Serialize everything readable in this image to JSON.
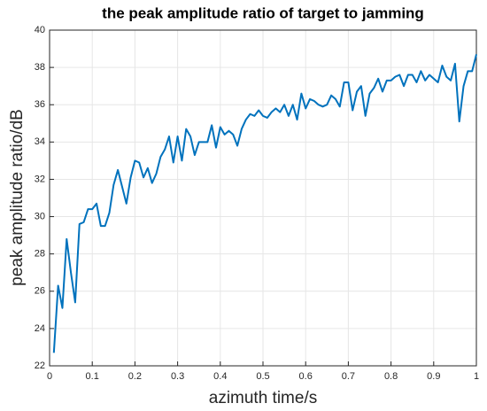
{
  "chart_data": {
    "type": "line",
    "title": "the peak amplitude ratio of target to jamming",
    "xlabel": "azimuth time/s",
    "ylabel": "peak amplitude ratio/dB",
    "x": [
      0.01,
      0.02,
      0.03,
      0.04,
      0.05,
      0.06,
      0.07,
      0.08,
      0.09,
      0.1,
      0.11,
      0.12,
      0.13,
      0.14,
      0.15,
      0.16,
      0.17,
      0.18,
      0.19,
      0.2,
      0.21,
      0.22,
      0.23,
      0.24,
      0.25,
      0.26,
      0.27,
      0.28,
      0.29,
      0.3,
      0.31,
      0.32,
      0.33,
      0.34,
      0.35,
      0.36,
      0.37,
      0.38,
      0.39,
      0.4,
      0.41,
      0.42,
      0.43,
      0.44,
      0.45,
      0.46,
      0.47,
      0.48,
      0.49,
      0.5,
      0.51,
      0.52,
      0.53,
      0.54,
      0.55,
      0.56,
      0.57,
      0.58,
      0.59,
      0.6,
      0.61,
      0.62,
      0.63,
      0.64,
      0.65,
      0.66,
      0.67,
      0.68,
      0.69,
      0.7,
      0.71,
      0.72,
      0.73,
      0.74,
      0.75,
      0.76,
      0.77,
      0.78,
      0.79,
      0.8,
      0.81,
      0.82,
      0.83,
      0.84,
      0.85,
      0.86,
      0.87,
      0.88,
      0.89,
      0.9,
      0.91,
      0.92,
      0.93,
      0.94,
      0.95,
      0.96,
      0.97,
      0.98,
      0.99,
      1
    ],
    "series": [
      {
        "color": "#0072bd",
        "values": [
          22.7,
          26.3,
          25.1,
          28.8,
          27.0,
          25.4,
          29.6,
          29.7,
          30.4,
          30.4,
          30.7,
          29.5,
          29.5,
          30.2,
          31.7,
          32.5,
          31.6,
          30.7,
          32.1,
          33.0,
          32.9,
          32.1,
          32.6,
          31.8,
          32.3,
          33.2,
          33.6,
          34.3,
          32.9,
          34.3,
          33.0,
          34.7,
          34.3,
          33.3,
          34.0,
          34.0,
          34.0,
          34.9,
          33.7,
          34.8,
          34.4,
          34.6,
          34.4,
          33.8,
          34.7,
          35.2,
          35.5,
          35.4,
          35.7,
          35.4,
          35.3,
          35.6,
          35.8,
          35.6,
          36.0,
          35.4,
          36.0,
          35.2,
          36.6,
          35.8,
          36.3,
          36.2,
          36.0,
          35.9,
          36.0,
          36.5,
          36.3,
          35.9,
          37.2,
          37.2,
          35.7,
          36.7,
          37.0,
          35.4,
          36.6,
          36.9,
          37.4,
          36.7,
          37.3,
          37.3,
          37.5,
          37.6,
          37.0,
          37.6,
          37.6,
          37.2,
          37.8,
          37.3,
          37.6,
          37.4,
          37.2,
          38.1,
          37.5,
          37.3,
          38.2,
          35.1,
          37.0,
          37.8,
          37.8,
          38.7
        ]
      }
    ],
    "xlim": [
      0,
      1
    ],
    "xticks": [
      0,
      0.1,
      0.2,
      0.3,
      0.4,
      0.5,
      0.6,
      0.7,
      0.8,
      0.9,
      1
    ],
    "ylim": [
      22,
      40
    ],
    "yticks": [
      22,
      24,
      26,
      28,
      30,
      32,
      34,
      36,
      38,
      40
    ],
    "grid": true
  }
}
